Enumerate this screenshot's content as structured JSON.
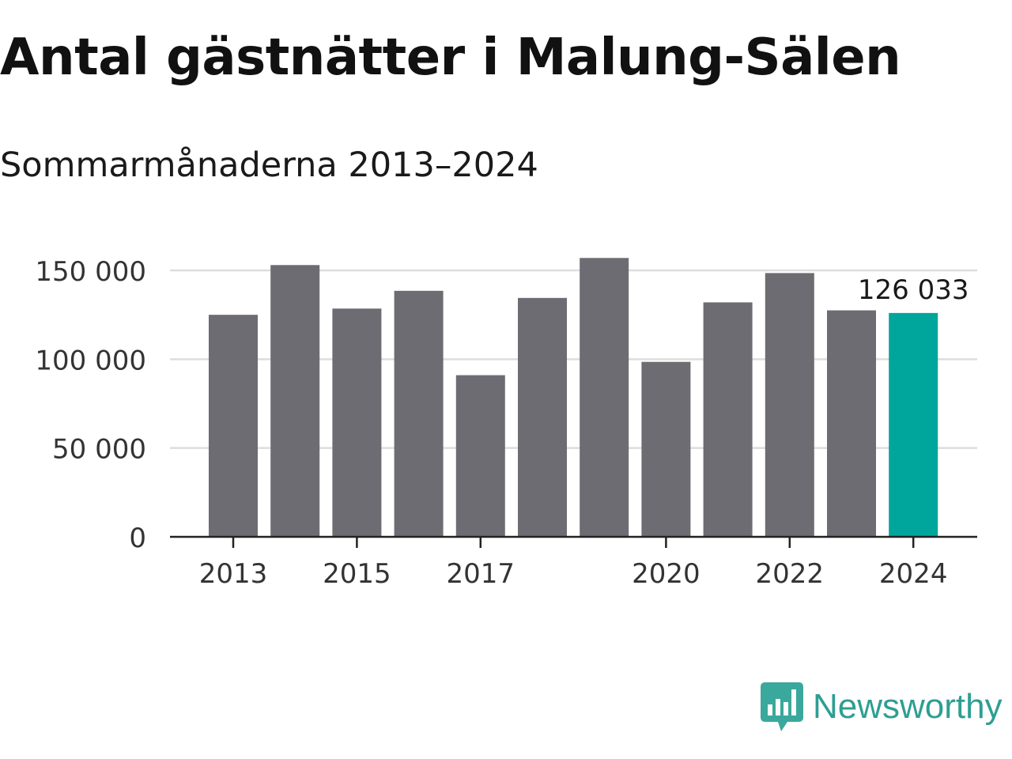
{
  "chart_data": {
    "type": "bar",
    "title": "Antal gästnätter i Malung-Sälen",
    "subtitle": "Sommarmånaderna 2013–2024",
    "xlabel": "",
    "ylabel": "",
    "categories": [
      2013,
      2014,
      2015,
      2016,
      2017,
      2018,
      2019,
      2020,
      2021,
      2022,
      2023,
      2024
    ],
    "values": [
      125000,
      153000,
      128500,
      138500,
      91000,
      134500,
      157000,
      98500,
      132000,
      148500,
      127500,
      126033
    ],
    "ylim": [
      0,
      160000
    ],
    "yticks": [
      0,
      50000,
      100000,
      150000
    ],
    "ytick_labels": [
      "0",
      "50 000",
      "100 000",
      "150 000"
    ],
    "xtick_labels": [
      "2013",
      "2015",
      "2017",
      "2020",
      "2022",
      "2024"
    ],
    "annotations": [
      {
        "category": 2024,
        "text": "126 033"
      }
    ],
    "grid": "horizontal",
    "colors": {
      "bar": "#6d6c72",
      "highlight": "#00a69c",
      "grid": "#dddddd",
      "axis": "#222222"
    }
  },
  "brand": {
    "name": "Newsworthy",
    "color": "#2e9e93",
    "icon": "bar-chart-speech-bubble-icon"
  }
}
